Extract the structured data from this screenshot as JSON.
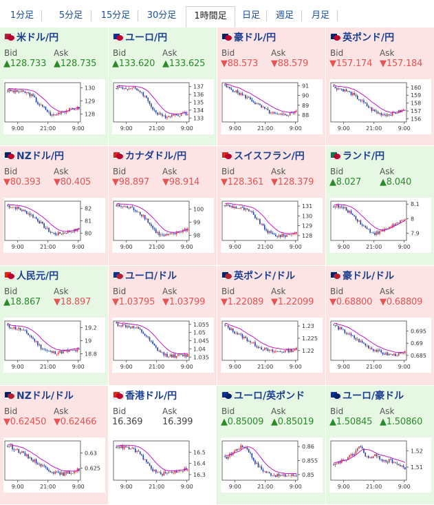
{
  "tabs": [
    {
      "label": "1分足",
      "active": false
    },
    {
      "label": "5分足",
      "active": false
    },
    {
      "label": "15分足",
      "active": false
    },
    {
      "label": "30分足",
      "active": false
    },
    {
      "label": "1時間足",
      "active": true
    },
    {
      "label": "日足",
      "active": false
    },
    {
      "label": "週足",
      "active": false
    },
    {
      "label": "月足",
      "active": false
    }
  ],
  "labels": {
    "bid": "Bid",
    "ask": "Ask"
  },
  "colors": {
    "up": "#2a8a2a",
    "down": "#e55353",
    "up_bg": "#e6f7e3",
    "down_bg": "#fde4e4",
    "name": "#1b3f8f",
    "ma": "#c000c0",
    "candle_up": "#e03030",
    "candle_down": "#1f3fa8"
  },
  "quotes": [
    {
      "name": "米ドル/円",
      "dir": "up",
      "bid": "▲128.733",
      "ask": "▲128.735",
      "flags": [
        "#b22234",
        "#bc002d"
      ],
      "chart_data": {
        "type": "candlestick",
        "x_ticks": [
          "9:00",
          "21:00",
          "9:00"
        ],
        "y_ticks": [
          "130",
          "129",
          "128"
        ],
        "ylim": [
          127.4,
          130.4
        ],
        "shape": [
          0.8,
          0.79,
          0.77,
          0.78,
          0.76,
          0.74,
          0.7,
          0.62,
          0.48,
          0.4,
          0.34,
          0.22,
          0.16,
          0.2,
          0.26,
          0.28,
          0.3,
          0.32,
          0.34,
          0.36
        ]
      }
    },
    {
      "name": "ユーロ/円",
      "dir": "up",
      "bid": "▲133.620",
      "ask": "▲133.625",
      "flags": [
        "#003399",
        "#bc002d"
      ],
      "chart_data": {
        "type": "candlestick",
        "x_ticks": [
          "9:00",
          "21:00",
          "9:00"
        ],
        "y_ticks": [
          "137",
          "136",
          "135",
          "134",
          "133"
        ],
        "ylim": [
          132.5,
          137.5
        ],
        "shape": [
          0.88,
          0.87,
          0.86,
          0.86,
          0.85,
          0.83,
          0.8,
          0.72,
          0.6,
          0.45,
          0.3,
          0.2,
          0.15,
          0.14,
          0.16,
          0.18,
          0.19,
          0.2,
          0.21,
          0.22
        ]
      }
    },
    {
      "name": "豪ドル/円",
      "dir": "down",
      "bid": "▼88.573",
      "ask": "▼88.579",
      "flags": [
        "#012169",
        "#bc002d"
      ],
      "chart_data": {
        "type": "candlestick",
        "x_ticks": [
          "9:00",
          "21:00",
          "9:00"
        ],
        "y_ticks": [
          "91",
          "90",
          "89",
          "88"
        ],
        "ylim": [
          87.3,
          91.3
        ],
        "shape": [
          0.9,
          0.86,
          0.82,
          0.76,
          0.72,
          0.66,
          0.62,
          0.56,
          0.48,
          0.42,
          0.36,
          0.3,
          0.24,
          0.2,
          0.18,
          0.17,
          0.18,
          0.2,
          0.24,
          0.3
        ]
      }
    },
    {
      "name": "英ポンド/円",
      "dir": "down",
      "bid": "▼157.174",
      "ask": "▼157.184",
      "flags": [
        "#012169",
        "#bc002d"
      ],
      "chart_data": {
        "type": "candlestick",
        "x_ticks": [
          "9:00",
          "21:00",
          "9:00"
        ],
        "y_ticks": [
          "160",
          "159",
          "158",
          "157",
          "156"
        ],
        "ylim": [
          155.6,
          160.6
        ],
        "shape": [
          0.88,
          0.86,
          0.84,
          0.8,
          0.76,
          0.7,
          0.62,
          0.56,
          0.48,
          0.4,
          0.32,
          0.26,
          0.22,
          0.2,
          0.19,
          0.2,
          0.22,
          0.25,
          0.28,
          0.3
        ]
      }
    },
    {
      "name": "NZドル/円",
      "dir": "down",
      "bid": "▼80.393",
      "ask": "▼80.405",
      "flags": [
        "#012169",
        "#bc002d"
      ],
      "chart_data": {
        "type": "candlestick",
        "x_ticks": [
          "9:00",
          "21:00",
          "9:00"
        ],
        "y_ticks": [
          "82",
          "81",
          "80"
        ],
        "ylim": [
          79.4,
          82.6
        ],
        "shape": [
          0.88,
          0.86,
          0.84,
          0.8,
          0.76,
          0.72,
          0.66,
          0.6,
          0.52,
          0.42,
          0.32,
          0.24,
          0.18,
          0.16,
          0.18,
          0.2,
          0.22,
          0.24,
          0.26,
          0.28
        ]
      }
    },
    {
      "name": "カナダドル/円",
      "dir": "down",
      "bid": "▼98.897",
      "ask": "▼98.914",
      "flags": [
        "#d52b1e",
        "#bc002d"
      ],
      "chart_data": {
        "type": "candlestick",
        "x_ticks": [
          "9:00",
          "21:00",
          "9:00"
        ],
        "y_ticks": [
          "100",
          "99",
          "98"
        ],
        "ylim": [
          97.6,
          100.6
        ],
        "shape": [
          0.88,
          0.87,
          0.86,
          0.84,
          0.82,
          0.78,
          0.72,
          0.64,
          0.54,
          0.4,
          0.28,
          0.18,
          0.12,
          0.12,
          0.14,
          0.16,
          0.18,
          0.22,
          0.26,
          0.3
        ]
      }
    },
    {
      "name": "スイスフラン/円",
      "dir": "down",
      "bid": "▼128.361",
      "ask": "▼128.379",
      "flags": [
        "#d52b1e",
        "#bc002d"
      ],
      "chart_data": {
        "type": "candlestick",
        "x_ticks": [
          "9:00",
          "21:00",
          "9:00"
        ],
        "y_ticks": [
          "131",
          "130",
          "129",
          "128"
        ],
        "ylim": [
          127.5,
          131.5
        ],
        "shape": [
          0.9,
          0.88,
          0.86,
          0.84,
          0.82,
          0.8,
          0.76,
          0.7,
          0.6,
          0.48,
          0.36,
          0.26,
          0.18,
          0.14,
          0.12,
          0.12,
          0.13,
          0.15,
          0.17,
          0.2
        ]
      }
    },
    {
      "name": "ランド/円",
      "dir": "up",
      "bid": "▲8.027",
      "ask": "▲8.040",
      "flags": [
        "#007a4d",
        "#bc002d"
      ],
      "chart_data": {
        "type": "candlestick",
        "x_ticks": [
          "9:00",
          "21:00",
          "9:00"
        ],
        "y_ticks": [
          "8.1",
          "8",
          "7.9"
        ],
        "ylim": [
          7.85,
          8.12
        ],
        "shape": [
          0.88,
          0.86,
          0.84,
          0.8,
          0.74,
          0.66,
          0.56,
          0.46,
          0.36,
          0.28,
          0.22,
          0.18,
          0.2,
          0.24,
          0.3,
          0.36,
          0.4,
          0.44,
          0.48,
          0.52
        ]
      }
    },
    {
      "name": "人民元/円",
      "dir": "up",
      "bid": "▲18.867",
      "ask": "▼18.897",
      "bid_dir": "up",
      "ask_dir": "down",
      "flags": [
        "#de2910",
        "#bc002d"
      ],
      "chart_data": {
        "type": "candlestick",
        "x_ticks": [
          "9:00",
          "21:00",
          "9:00"
        ],
        "y_ticks": [
          "19.2",
          "19",
          "18.8"
        ],
        "ylim": [
          18.7,
          19.3
        ],
        "shape": [
          0.86,
          0.84,
          0.82,
          0.8,
          0.76,
          0.7,
          0.62,
          0.52,
          0.42,
          0.32,
          0.26,
          0.22,
          0.2,
          0.2,
          0.21,
          0.22,
          0.23,
          0.24,
          0.25,
          0.26
        ]
      }
    },
    {
      "name": "ユーロ/ドル",
      "dir": "down",
      "bid": "▼1.03795",
      "ask": "▼1.03799",
      "flags": [
        "#003399",
        "#b22234"
      ],
      "chart_data": {
        "type": "candlestick",
        "x_ticks": [
          "9:00",
          "21:00",
          "9:00"
        ],
        "y_ticks": [
          "1.055",
          "1.05",
          "1.045",
          "1.04",
          "1.035"
        ],
        "ylim": [
          1.033,
          1.057
        ],
        "shape": [
          0.92,
          0.9,
          0.88,
          0.86,
          0.84,
          0.82,
          0.78,
          0.7,
          0.6,
          0.48,
          0.36,
          0.26,
          0.18,
          0.14,
          0.12,
          0.11,
          0.11,
          0.12,
          0.12,
          0.13
        ]
      }
    },
    {
      "name": "英ポンド/ドル",
      "dir": "down",
      "bid": "▼1.22089",
      "ask": "▼1.22099",
      "flags": [
        "#012169",
        "#b22234"
      ],
      "chart_data": {
        "type": "candlestick",
        "x_ticks": [
          "9:00",
          "21:00",
          "9:00"
        ],
        "y_ticks": [
          "1.23",
          "1.225",
          "1.22"
        ],
        "ylim": [
          1.216,
          1.232
        ],
        "shape": [
          0.88,
          0.82,
          0.76,
          0.7,
          0.64,
          0.58,
          0.52,
          0.46,
          0.4,
          0.34,
          0.3,
          0.26,
          0.24,
          0.22,
          0.22,
          0.23,
          0.24,
          0.25,
          0.26,
          0.28
        ]
      }
    },
    {
      "name": "豪ドル/ドル",
      "dir": "down",
      "bid": "▼0.68800",
      "ask": "▼0.68809",
      "flags": [
        "#012169",
        "#b22234"
      ],
      "chart_data": {
        "type": "candlestick",
        "x_ticks": [
          "9:00",
          "21:00",
          "9:00"
        ],
        "y_ticks": [
          "0.695",
          "0.69",
          "0.685"
        ],
        "ylim": [
          0.683,
          0.699
        ],
        "shape": [
          0.9,
          0.84,
          0.78,
          0.72,
          0.66,
          0.6,
          0.54,
          0.48,
          0.42,
          0.36,
          0.3,
          0.26,
          0.22,
          0.18,
          0.16,
          0.14,
          0.14,
          0.15,
          0.16,
          0.18
        ]
      }
    },
    {
      "name": "NZドル/ドル",
      "dir": "down",
      "bid": "▼0.62450",
      "ask": "▼0.62466",
      "flags": [
        "#012169",
        "#b22234"
      ],
      "chart_data": {
        "type": "candlestick",
        "x_ticks": [
          "9:00",
          "21:00",
          "9:00"
        ],
        "y_ticks": [
          "0.63",
          "0.625"
        ],
        "ylim": [
          0.621,
          0.634
        ],
        "shape": [
          0.88,
          0.84,
          0.8,
          0.74,
          0.68,
          0.62,
          0.56,
          0.5,
          0.44,
          0.38,
          0.32,
          0.26,
          0.22,
          0.18,
          0.16,
          0.16,
          0.18,
          0.2,
          0.24,
          0.28
        ]
      }
    },
    {
      "name": "香港ドル/円",
      "dir": "flat",
      "bid": "16.369",
      "ask": "16.399",
      "flags": [
        "#de2910",
        "#bc002d"
      ],
      "chart_data": {
        "type": "candlestick",
        "x_ticks": [
          "9:00",
          "21:00",
          "9:00"
        ],
        "y_ticks": [
          "16.5",
          "16.4",
          "16.3"
        ],
        "ylim": [
          16.25,
          16.6
        ],
        "shape": [
          0.86,
          0.85,
          0.84,
          0.82,
          0.8,
          0.76,
          0.68,
          0.58,
          0.46,
          0.34,
          0.24,
          0.18,
          0.16,
          0.17,
          0.19,
          0.21,
          0.23,
          0.25,
          0.27,
          0.3
        ]
      }
    },
    {
      "name": "ユーロ/英ポンド",
      "dir": "up",
      "bid": "▲0.85009",
      "ask": "▲0.85019",
      "flags": [
        "#003399",
        "#012169"
      ],
      "chart_data": {
        "type": "candlestick",
        "x_ticks": [
          "9:00",
          "21:00",
          "9:00"
        ],
        "y_ticks": [
          "0.86",
          "0.855",
          "0.85"
        ],
        "ylim": [
          0.848,
          0.862
        ],
        "shape": [
          0.56,
          0.62,
          0.7,
          0.78,
          0.84,
          0.86,
          0.8,
          0.62,
          0.46,
          0.34,
          0.26,
          0.2,
          0.16,
          0.14,
          0.12,
          0.11,
          0.11,
          0.12,
          0.12,
          0.13
        ]
      }
    },
    {
      "name": "ユーロ/豪ドル",
      "dir": "up",
      "bid": "▲1.50845",
      "ask": "▲1.50860",
      "flags": [
        "#003399",
        "#012169"
      ],
      "chart_data": {
        "type": "candlestick",
        "x_ticks": [
          "9:00",
          "21:00",
          "9:00"
        ],
        "y_ticks": [
          "1.52",
          "1.51"
        ],
        "ylim": [
          1.502,
          1.526
        ],
        "shape": [
          0.36,
          0.42,
          0.48,
          0.52,
          0.58,
          0.64,
          0.76,
          0.88,
          0.7,
          0.58,
          0.56,
          0.62,
          0.58,
          0.52,
          0.48,
          0.5,
          0.46,
          0.4,
          0.34,
          0.3
        ]
      }
    }
  ]
}
